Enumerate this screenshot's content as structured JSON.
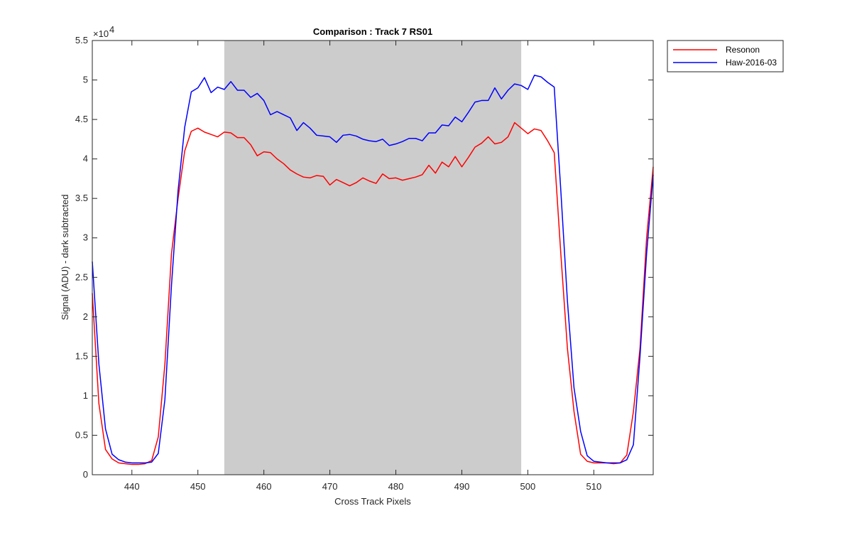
{
  "chart_data": {
    "type": "line",
    "title": "Comparison : Track 7  RS01",
    "xlabel": "Cross Track Pixels",
    "ylabel": "Signal (ADU) - dark subtracted",
    "y_exponent_label": "×10",
    "y_exponent_power": "4",
    "xlim": [
      434,
      519
    ],
    "ylim": [
      0,
      55000
    ],
    "x_ticks": [
      440,
      450,
      460,
      470,
      480,
      490,
      500,
      510
    ],
    "x_tick_labels": [
      "440",
      "450",
      "460",
      "470",
      "480",
      "490",
      "500",
      "510"
    ],
    "y_ticks": [
      0,
      5000,
      10000,
      15000,
      20000,
      25000,
      30000,
      35000,
      40000,
      45000,
      50000,
      55000
    ],
    "y_tick_labels": [
      "0",
      "0.5",
      "1",
      "1.5",
      "2",
      "2.5",
      "3",
      "3.5",
      "4",
      "4.5",
      "5",
      "5.5"
    ],
    "grid": false,
    "legend_position": "outside-top-right",
    "shaded_region": {
      "x_start": 454,
      "x_end": 499,
      "color": "#cccccc"
    },
    "x": [
      434,
      435,
      436,
      437,
      438,
      439,
      440,
      441,
      442,
      443,
      444,
      445,
      446,
      447,
      448,
      449,
      450,
      451,
      452,
      453,
      454,
      455,
      456,
      457,
      458,
      459,
      460,
      461,
      462,
      463,
      464,
      465,
      466,
      467,
      468,
      469,
      470,
      471,
      472,
      473,
      474,
      475,
      476,
      477,
      478,
      479,
      480,
      481,
      482,
      483,
      484,
      485,
      486,
      487,
      488,
      489,
      490,
      491,
      492,
      493,
      494,
      495,
      496,
      497,
      498,
      499,
      500,
      501,
      502,
      503,
      504,
      505,
      506,
      507,
      508,
      509,
      510,
      511,
      512,
      513,
      514,
      515,
      516,
      517,
      518,
      519
    ],
    "series": [
      {
        "name": "Resonon",
        "color": "#ff0000",
        "values": [
          23000,
          9000,
          3200,
          2000,
          1500,
          1400,
          1300,
          1300,
          1400,
          1800,
          4800,
          14000,
          28000,
          35000,
          41000,
          43500,
          43900,
          43400,
          43100,
          42800,
          43400,
          43300,
          42700,
          42700,
          41800,
          40400,
          40900,
          40800,
          40000,
          39400,
          38600,
          38100,
          37700,
          37600,
          37900,
          37800,
          36700,
          37400,
          37000,
          36600,
          37000,
          37600,
          37200,
          36900,
          38100,
          37500,
          37600,
          37300,
          37500,
          37700,
          38000,
          39200,
          38200,
          39600,
          39000,
          40300,
          39000,
          40200,
          41500,
          42000,
          42800,
          41900,
          42100,
          42800,
          44600,
          43900,
          43200,
          43800,
          43600,
          42300,
          40800,
          28000,
          16000,
          8000,
          2600,
          1700,
          1500,
          1500,
          1500,
          1400,
          1500,
          2500,
          8000,
          16000,
          30000,
          39000
        ]
      },
      {
        "name": "Haw-2016-03",
        "color": "#0000ff",
        "values": [
          27000,
          14000,
          5800,
          2600,
          1900,
          1600,
          1500,
          1500,
          1500,
          1600,
          2700,
          9500,
          24000,
          36000,
          44000,
          48500,
          49000,
          50300,
          48400,
          49100,
          48800,
          49800,
          48700,
          48700,
          47800,
          48300,
          47400,
          45600,
          46000,
          45600,
          45200,
          43600,
          44600,
          43900,
          43000,
          42900,
          42800,
          42100,
          43000,
          43100,
          42900,
          42500,
          42300,
          42200,
          42500,
          41700,
          41900,
          42200,
          42600,
          42600,
          42300,
          43300,
          43300,
          44300,
          44200,
          45300,
          44700,
          45900,
          47200,
          47400,
          47400,
          49000,
          47600,
          48700,
          49500,
          49300,
          48800,
          50600,
          50400,
          49700,
          49100,
          36000,
          22000,
          11000,
          5500,
          2400,
          1700,
          1600,
          1500,
          1500,
          1500,
          1900,
          3800,
          15000,
          28000,
          38000
        ]
      }
    ]
  }
}
